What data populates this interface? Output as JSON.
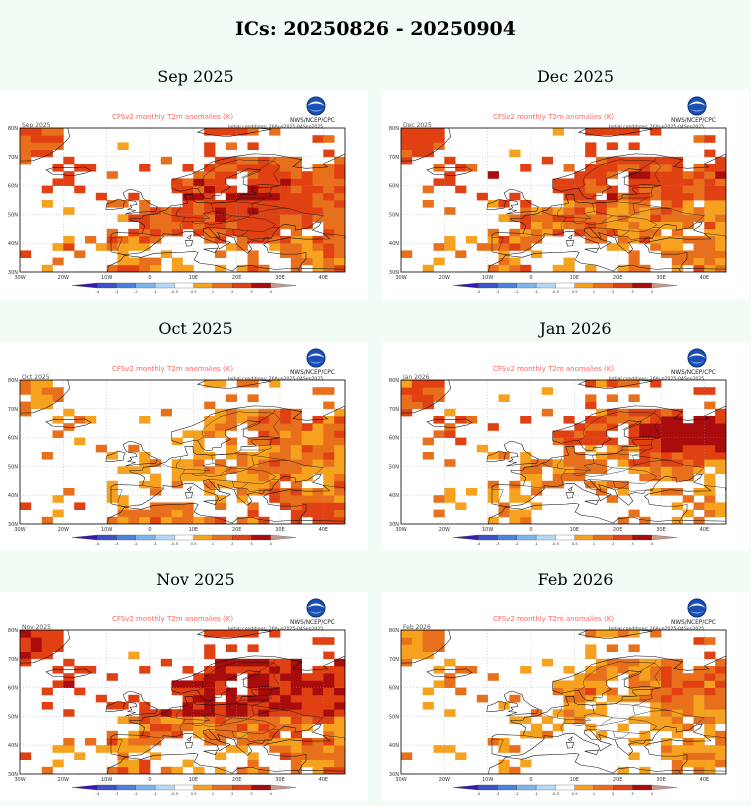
{
  "title": "ICs: 20250826 - 20250904",
  "panel_header": "CFSv2 monthly T2m anomalies (K)",
  "credit": "NWS/NCEP/CPC",
  "init_text": "Initial conditions: 26Aug2025-04Sep2025",
  "lon_labels": [
    "30W",
    "20W",
    "10W",
    "0",
    "10E",
    "20E",
    "30E",
    "40E"
  ],
  "lat_labels": [
    "30N",
    "40N",
    "50N",
    "60N",
    "70N",
    "80N"
  ],
  "legend": {
    "labels": [
      "-4",
      "-3",
      "-2",
      "-1",
      "-0.5",
      "0.5",
      "1",
      "2",
      "3",
      "4"
    ],
    "colors": [
      "#3a1aa8",
      "#3c50c8",
      "#4a82e0",
      "#7ab6ee",
      "#b4d8f8",
      "#ffffff",
      "#f7a21e",
      "#e8701c",
      "#e04012",
      "#a80c0c",
      "#c49a8e"
    ]
  },
  "palette": {
    "warm1": "#f7a21e",
    "warm2": "#e8701c",
    "warm3": "#e04012",
    "warm4": "#a80c0c",
    "land_outline": "#111111",
    "grid": "#9a9a9a",
    "header_text": "#ff6666"
  },
  "panels": [
    {
      "title": "Sep 2025",
      "inner_label": "Sep 2025",
      "intensity": 2
    },
    {
      "title": "Dec 2025",
      "inner_label": "Dec 2025",
      "intensity": 2
    },
    {
      "title": "Oct 2025",
      "inner_label": "Oct 2025",
      "intensity": 1
    },
    {
      "title": "Jan 2026",
      "inner_label": "Jan 2026",
      "intensity": 3
    },
    {
      "title": "Nov 2025",
      "inner_label": "Nov 2025",
      "intensity": 2
    },
    {
      "title": "Feb 2026",
      "inner_label": "Feb 2026",
      "intensity": 1
    }
  ]
}
